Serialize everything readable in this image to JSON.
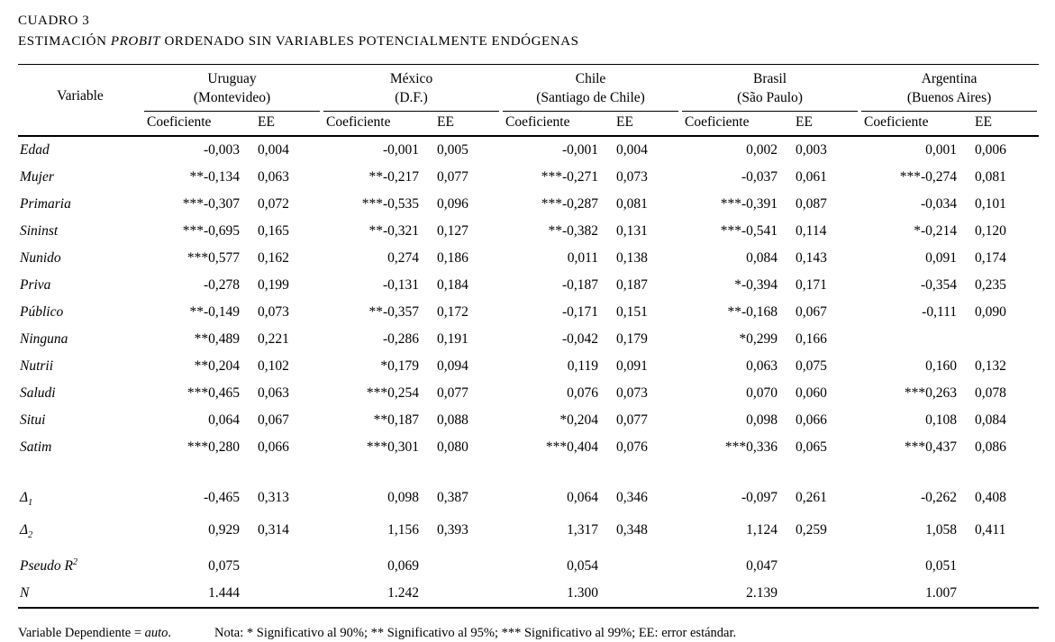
{
  "title": {
    "label": "CUADRO 3",
    "caption_pre": "ESTIMACIÓN ",
    "caption_italic": "PROBIT",
    "caption_post": " ORDENADO SIN VARIABLES POTENCIALMENTE ENDÓGENAS"
  },
  "table": {
    "variable_header": "Variable",
    "subheaders": {
      "coefficient": "Coeficiente",
      "ee": "EE"
    },
    "countries": [
      {
        "name": "Uruguay",
        "city": "(Montevideo)"
      },
      {
        "name": "México",
        "city": "(D.F.)"
      },
      {
        "name": "Chile",
        "city": "(Santiago de Chile)"
      },
      {
        "name": "Brasil",
        "city": "(São Paulo)"
      },
      {
        "name": "Argentina",
        "city": "(Buenos Aires)"
      }
    ],
    "rows": [
      {
        "variable": "Edad",
        "values": [
          "-0,003",
          "0,004",
          "-0,001",
          "0,005",
          "-0,001",
          "0,004",
          "0,002",
          "0,003",
          "0,001",
          "0,006"
        ]
      },
      {
        "variable": "Mujer",
        "values": [
          "**-0,134",
          "0,063",
          "**-0,217",
          "0,077",
          "***-0,271",
          "0,073",
          "-0,037",
          "0,061",
          "***-0,274",
          "0,081"
        ]
      },
      {
        "variable": "Primaria",
        "values": [
          "***-0,307",
          "0,072",
          "***-0,535",
          "0,096",
          "***-0,287",
          "0,081",
          "***-0,391",
          "0,087",
          "-0,034",
          "0,101"
        ]
      },
      {
        "variable": "Sininst",
        "values": [
          "***-0,695",
          "0,165",
          "**-0,321",
          "0,127",
          "**-0,382",
          "0,131",
          "***-0,541",
          "0,114",
          "*-0,214",
          "0,120"
        ]
      },
      {
        "variable": "Nunido",
        "values": [
          "***0,577",
          "0,162",
          "0,274",
          "0,186",
          "0,011",
          "0,138",
          "0,084",
          "0,143",
          "0,091",
          "0,174"
        ]
      },
      {
        "variable": "Priva",
        "values": [
          "-0,278",
          "0,199",
          "-0,131",
          "0,184",
          "-0,187",
          "0,187",
          "*-0,394",
          "0,171",
          "-0,354",
          "0,235"
        ]
      },
      {
        "variable": "Público",
        "values": [
          "**-0,149",
          "0,073",
          "**-0,357",
          "0,172",
          "-0,171",
          "0,151",
          "**-0,168",
          "0,067",
          "-0,111",
          "0,090"
        ]
      },
      {
        "variable": "Ninguna",
        "values": [
          "**0,489",
          "0,221",
          "-0,286",
          "0,191",
          "-0,042",
          "0,179",
          "*0,299",
          "0,166",
          "",
          ""
        ]
      },
      {
        "variable": "Nutrii",
        "values": [
          "**0,204",
          "0,102",
          "*0,179",
          "0,094",
          "0,119",
          "0,091",
          "0,063",
          "0,075",
          "0,160",
          "0,132"
        ]
      },
      {
        "variable": "Saludi",
        "values": [
          "***0,465",
          "0,063",
          "***0,254",
          "0,077",
          "0,076",
          "0,073",
          "0,070",
          "0,060",
          "***0,263",
          "0,078"
        ]
      },
      {
        "variable": "Situi",
        "values": [
          "0,064",
          "0,067",
          "**0,187",
          "0,088",
          "*0,204",
          "0,077",
          "0,098",
          "0,066",
          "0,108",
          "0,084"
        ]
      },
      {
        "variable": "Satim",
        "values": [
          "***0,280",
          "0,066",
          "***0,301",
          "0,080",
          "***0,404",
          "0,076",
          "***0,336",
          "0,065",
          "***0,437",
          "0,086"
        ]
      },
      {
        "spacer": true
      },
      {
        "variable": "Δ",
        "variable_sub": "1",
        "values": [
          "-0,465",
          "0,313",
          "0,098",
          "0,387",
          "0,064",
          "0,346",
          "-0,097",
          "0,261",
          "-0,262",
          "0,408"
        ]
      },
      {
        "variable": "Δ",
        "variable_sub": "2",
        "values": [
          "0,929",
          "0,314",
          "1,156",
          "0,393",
          "1,317",
          "0,348",
          "1,124",
          "0,259",
          "1,058",
          "0,411"
        ]
      },
      {
        "variable": "Pseudo R",
        "variable_sup": "2",
        "values": [
          "0,075",
          "",
          "0,069",
          "",
          "0,054",
          "",
          "0,047",
          "",
          "0,051",
          ""
        ]
      },
      {
        "variable": "N",
        "values": [
          "1.444",
          "",
          "1.242",
          "",
          "1.300",
          "",
          "2.139",
          "",
          "1.007",
          ""
        ]
      }
    ]
  },
  "footnote": {
    "dependent_pre": "Variable Dependiente = ",
    "dependent_italic": "auto",
    "dependent_post": ".",
    "note": "Nota: * Significativo al 90%; ** Significativo al 95%; *** Significativo al 99%; EE: error estándar."
  }
}
